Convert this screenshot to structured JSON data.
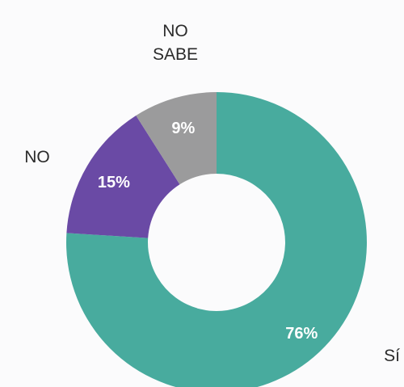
{
  "chart_data": {
    "type": "pie",
    "donut": true,
    "start": "top",
    "direction": "clockwise",
    "categories": [
      "SÍ",
      "NO",
      "NO SABE"
    ],
    "label_lines": [
      [
        "Sí"
      ],
      [
        "NO"
      ],
      [
        "NO",
        "SABE"
      ]
    ],
    "values": [
      76,
      15,
      9
    ],
    "data_labels": [
      "76%",
      "15%",
      "9%"
    ],
    "colors": [
      "#48ab9e",
      "#6a4aa5",
      "#9b9b9c"
    ],
    "legend": "none"
  }
}
